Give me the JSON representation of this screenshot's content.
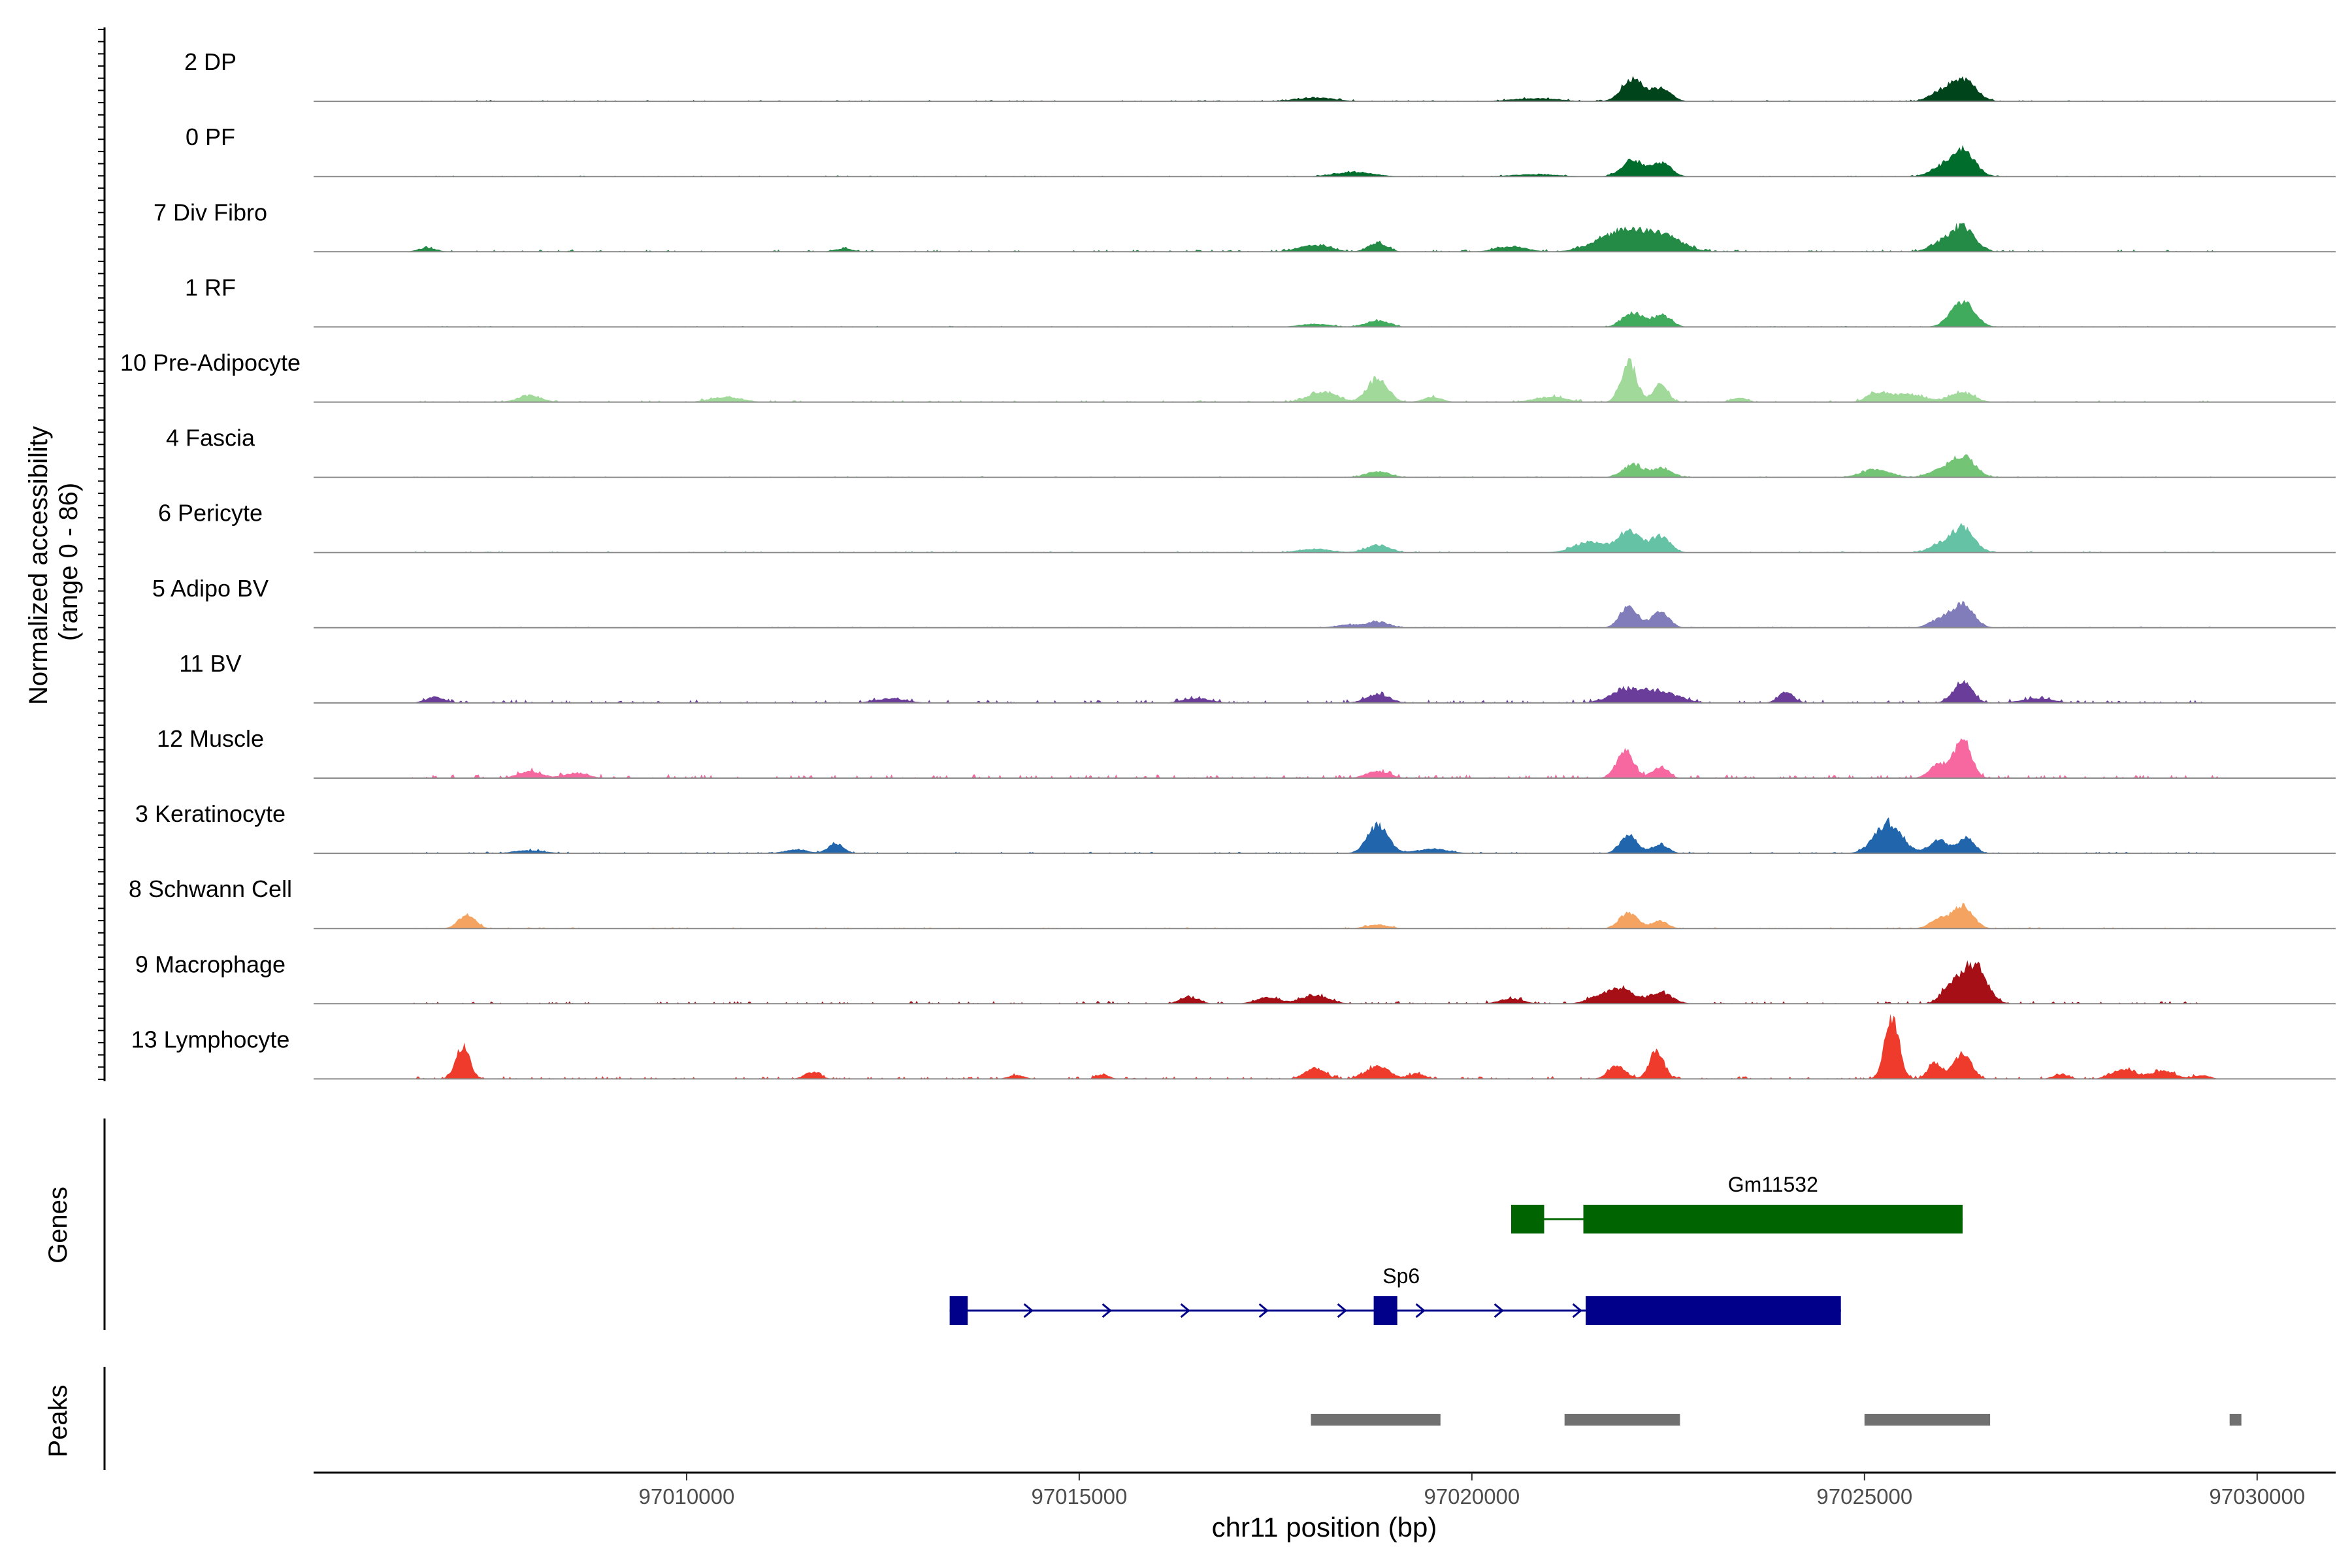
{
  "chart_data": {
    "type": "area",
    "chromosome": "chr11",
    "xlim": [
      97005250,
      97031000
    ],
    "ylabel_line1": "Normalized accessibility",
    "ylabel_line2": "(range 0 - 86)",
    "y_range": [
      0,
      86
    ],
    "xlabel": "chr11 position (bp)",
    "x_ticks": [
      {
        "value": 97010000,
        "label": "97010000"
      },
      {
        "value": 97015000,
        "label": "97015000"
      },
      {
        "value": 97020000,
        "label": "97020000"
      },
      {
        "value": 97025000,
        "label": "97025000"
      },
      {
        "value": 97030000,
        "label": "97030000"
      }
    ],
    "tracks": [
      {
        "name": "2 DP",
        "color": "#00441b",
        "peaks": [
          [
            97022050,
            30,
            140
          ],
          [
            97022420,
            17,
            120
          ],
          [
            97026250,
            30,
            160
          ],
          [
            97025950,
            9,
            140
          ],
          [
            97018000,
            5,
            250
          ],
          [
            97020800,
            4,
            300
          ]
        ],
        "noise": [
          [
            97006500,
            97029500,
            1.2
          ]
        ]
      },
      {
        "name": "0 PF",
        "color": "#006d2c",
        "peaks": [
          [
            97022050,
            22,
            140
          ],
          [
            97022420,
            18,
            120
          ],
          [
            97026250,
            36,
            150
          ],
          [
            97025950,
            10,
            140
          ],
          [
            97018500,
            6,
            250
          ],
          [
            97020800,
            3,
            300
          ]
        ],
        "noise": [
          [
            97006500,
            97029500,
            1.0
          ]
        ]
      },
      {
        "name": "7 Div Fibro",
        "color": "#238b45",
        "peaks": [
          [
            97022050,
            24,
            280
          ],
          [
            97022500,
            15,
            220
          ],
          [
            97021700,
            10,
            260
          ],
          [
            97026250,
            33,
            150
          ],
          [
            97025950,
            10,
            140
          ],
          [
            97018800,
            12,
            120
          ],
          [
            97018000,
            9,
            200
          ],
          [
            97020500,
            7,
            200
          ],
          [
            97006700,
            5,
            120
          ],
          [
            97012000,
            4,
            120
          ]
        ],
        "noise": [
          [
            97006500,
            97029500,
            2.0
          ]
        ]
      },
      {
        "name": "1 RF",
        "color": "#41ab5d",
        "peaks": [
          [
            97022050,
            19,
            130
          ],
          [
            97022420,
            15,
            120
          ],
          [
            97026250,
            34,
            150
          ],
          [
            97018800,
            8,
            150
          ],
          [
            97018000,
            4,
            200
          ]
        ],
        "noise": [
          [
            97006500,
            97029500,
            1.0
          ]
        ]
      },
      {
        "name": "10 Pre-Adipocyte",
        "color": "#a1d99b",
        "peaks": [
          [
            97022000,
            52,
            100
          ],
          [
            97022400,
            26,
            90
          ],
          [
            97018800,
            32,
            130
          ],
          [
            97018100,
            14,
            180
          ],
          [
            97019500,
            7,
            120
          ],
          [
            97025500,
            11,
            250
          ],
          [
            97025150,
            9,
            120
          ],
          [
            97026250,
            13,
            150
          ],
          [
            97008000,
            9,
            150
          ],
          [
            97010500,
            7,
            200
          ],
          [
            97021000,
            7,
            200
          ],
          [
            97023400,
            6,
            100
          ]
        ],
        "noise": [
          [
            97006500,
            97029500,
            2.0
          ]
        ]
      },
      {
        "name": "4 Fascia",
        "color": "#74c476",
        "peaks": [
          [
            97022050,
            17,
            130
          ],
          [
            97022420,
            13,
            120
          ],
          [
            97026250,
            28,
            150
          ],
          [
            97025950,
            9,
            140
          ],
          [
            97025150,
            11,
            180
          ],
          [
            97018800,
            8,
            150
          ]
        ],
        "noise": [
          [
            97006500,
            97029500,
            1.0
          ]
        ]
      },
      {
        "name": "6 Pericyte",
        "color": "#66c2a4",
        "peaks": [
          [
            97022000,
            28,
            140
          ],
          [
            97022400,
            22,
            120
          ],
          [
            97021500,
            14,
            200
          ],
          [
            97026250,
            34,
            140
          ],
          [
            97025950,
            10,
            130
          ],
          [
            97018800,
            10,
            150
          ],
          [
            97018000,
            5,
            200
          ]
        ],
        "noise": [
          [
            97006500,
            97029500,
            1.2
          ]
        ]
      },
      {
        "name": "5 Adipo BV",
        "color": "#807dba",
        "peaks": [
          [
            97022000,
            30,
            110
          ],
          [
            97022400,
            22,
            110
          ],
          [
            97026250,
            31,
            140
          ],
          [
            97025950,
            10,
            130
          ],
          [
            97018800,
            8,
            150
          ],
          [
            97018400,
            4,
            150
          ]
        ],
        "noise": [
          [
            97006500,
            97029500,
            1.0
          ]
        ]
      },
      {
        "name": "11 BV",
        "color": "#6a3d9a",
        "peaks": [
          [
            97022050,
            18,
            250
          ],
          [
            97022500,
            10,
            200
          ],
          [
            97026250,
            28,
            120
          ],
          [
            97024000,
            14,
            100
          ],
          [
            97018800,
            12,
            150
          ],
          [
            97006800,
            8,
            120
          ],
          [
            97027200,
            6,
            200
          ],
          [
            97012600,
            6,
            200
          ],
          [
            97016500,
            6,
            180
          ]
        ],
        "noise": [
          [
            97006500,
            97029500,
            3.0
          ]
        ]
      },
      {
        "name": "12 Muscle",
        "color": "#f768a1",
        "peaks": [
          [
            97021950,
            36,
            110
          ],
          [
            97022400,
            14,
            100
          ],
          [
            97026250,
            50,
            110
          ],
          [
            97025950,
            18,
            120
          ],
          [
            97008000,
            9,
            150
          ],
          [
            97008600,
            7,
            150
          ],
          [
            97018800,
            9,
            150
          ]
        ],
        "noise": [
          [
            97006500,
            97029500,
            3.5
          ]
        ]
      },
      {
        "name": "3 Keratinocyte",
        "color": "#2166ac",
        "peaks": [
          [
            97018800,
            38,
            130
          ],
          [
            97025300,
            40,
            170
          ],
          [
            97022000,
            24,
            110
          ],
          [
            97022400,
            12,
            100
          ],
          [
            97025950,
            18,
            120
          ],
          [
            97026300,
            22,
            100
          ],
          [
            97011900,
            13,
            100
          ],
          [
            97011400,
            5,
            150
          ],
          [
            97019500,
            6,
            200
          ],
          [
            97008000,
            4,
            200
          ]
        ],
        "noise": [
          [
            97006500,
            97029500,
            1.5
          ]
        ]
      },
      {
        "name": "8 Schwann Cell",
        "color": "#f4a460",
        "peaks": [
          [
            97022000,
            21,
            120
          ],
          [
            97022400,
            10,
            100
          ],
          [
            97026250,
            29,
            130
          ],
          [
            97025950,
            12,
            120
          ],
          [
            97007200,
            18,
            110
          ],
          [
            97018800,
            5,
            150
          ]
        ],
        "noise": [
          [
            97006500,
            97029500,
            1.2
          ]
        ]
      },
      {
        "name": "9 Macrophage",
        "color": "#a50f15",
        "peaks": [
          [
            97026400,
            52,
            150
          ],
          [
            97026100,
            22,
            120
          ],
          [
            97021900,
            20,
            160
          ],
          [
            97022400,
            15,
            150
          ],
          [
            97018000,
            11,
            180
          ],
          [
            97016400,
            9,
            120
          ],
          [
            97017400,
            8,
            150
          ],
          [
            97020500,
            7,
            150
          ],
          [
            97021600,
            8,
            150
          ]
        ],
        "noise": [
          [
            97006500,
            97029500,
            2.5
          ]
        ]
      },
      {
        "name": "13 Lymphocyte",
        "color": "#ef3b2c",
        "peaks": [
          [
            97025350,
            86,
            90
          ],
          [
            97007150,
            43,
            90
          ],
          [
            97022350,
            38,
            90
          ],
          [
            97026250,
            34,
            110
          ],
          [
            97025900,
            22,
            90
          ],
          [
            97021850,
            18,
            110
          ],
          [
            97018000,
            14,
            130
          ],
          [
            97018800,
            17,
            150
          ],
          [
            97011600,
            9,
            100
          ],
          [
            97028300,
            13,
            150
          ],
          [
            97028800,
            11,
            150
          ],
          [
            97015300,
            6,
            80
          ],
          [
            97014200,
            5,
            100
          ],
          [
            97027500,
            6,
            100
          ],
          [
            97029300,
            5,
            100
          ],
          [
            97019300,
            7,
            100
          ]
        ],
        "noise": [
          [
            97006500,
            97029500,
            2.5
          ]
        ]
      }
    ],
    "genes_label": "Genes",
    "genes": [
      {
        "name": "Gm11532",
        "color": "#006400",
        "strand": "",
        "start": 97020500,
        "end": 97026250,
        "exons": [
          [
            97020500,
            97020920
          ],
          [
            97021420,
            97026250
          ]
        ]
      },
      {
        "name": "Sp6",
        "color": "#00008b",
        "strand": "+",
        "start": 97013350,
        "end": 97024700,
        "exons": [
          [
            97013350,
            97013580
          ],
          [
            97018750,
            97019050
          ],
          [
            97021450,
            97024700
          ]
        ]
      }
    ],
    "peaks_label": "Peaks",
    "peaks_color": "#707070",
    "peak_regions": [
      [
        97017950,
        97019600
      ],
      [
        97021180,
        97022650
      ],
      [
        97025000,
        97026600
      ],
      [
        97029650,
        97029800
      ]
    ]
  }
}
